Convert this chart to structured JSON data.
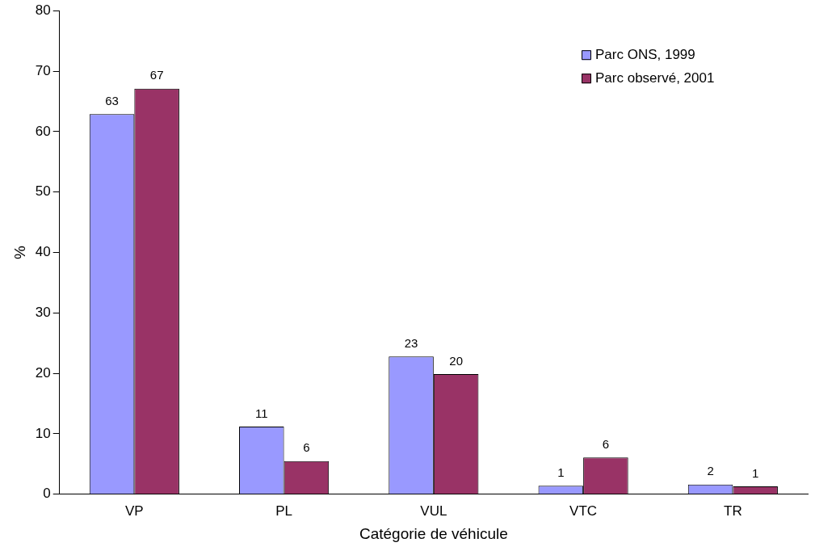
{
  "chart_data": {
    "type": "bar",
    "xlabel": "Catégorie de véhicule",
    "ylabel": "%",
    "categories": [
      "VP",
      "PL",
      "VUL",
      "VTC",
      "TR"
    ],
    "series": [
      {
        "name": "Parc ONS, 1999",
        "color": "#9999ff",
        "values": [
          62.9,
          11.2,
          22.8,
          1.4,
          1.6
        ],
        "value_labels": [
          "63",
          "11",
          "23",
          "1",
          "2"
        ]
      },
      {
        "name": "Parc observé, 2001",
        "color": "#993366",
        "values": [
          67.1,
          5.5,
          19.9,
          6.1,
          1.3
        ],
        "value_labels": [
          "67",
          "6",
          "20",
          "6",
          "1"
        ]
      }
    ],
    "ylim": [
      0,
      80
    ],
    "yticks": [
      0,
      10,
      20,
      30,
      40,
      50,
      60,
      70,
      80
    ],
    "grid": false,
    "legend": "top right"
  }
}
